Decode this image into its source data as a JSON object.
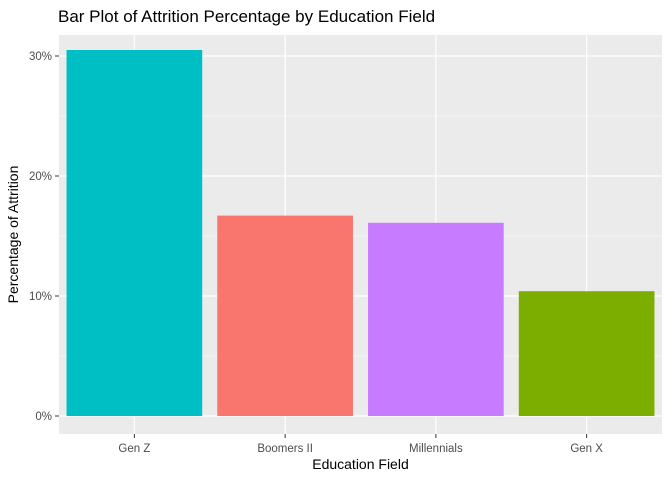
{
  "chart_data": {
    "type": "bar",
    "title": "Bar Plot of Attrition Percentage by Education Field",
    "xlabel": "Education Field",
    "ylabel": "Percentage of Attrition",
    "categories": [
      "Gen Z",
      "Boomers II",
      "Millennials",
      "Gen X"
    ],
    "values": [
      30.5,
      16.7,
      16.1,
      10.4
    ],
    "bar_colors": [
      "#00BFC4",
      "#F8766D",
      "#C77CFF",
      "#7CAE00"
    ],
    "ylim": [
      0,
      32
    ],
    "y_ticks": [
      0,
      10,
      20,
      30
    ],
    "y_tick_labels": [
      "0%",
      "10%",
      "20%",
      "30%"
    ],
    "panel_background": "#EBEBEB",
    "grid": true,
    "legend": "none"
  }
}
